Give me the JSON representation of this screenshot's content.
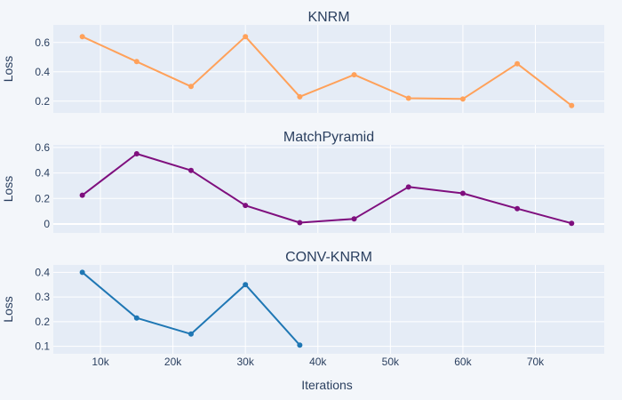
{
  "chart_data": [
    {
      "type": "line",
      "title": "KNRM",
      "ylabel": "Loss",
      "xlabel": "",
      "x": [
        7500,
        15000,
        22500,
        30000,
        37500,
        45000,
        52500,
        60000,
        67500,
        75000
      ],
      "values": [
        0.64,
        0.47,
        0.3,
        0.64,
        0.23,
        0.38,
        0.22,
        0.215,
        0.455,
        0.17
      ],
      "color": "#ffa15a",
      "xlim": [
        3500,
        79500
      ],
      "ylim": [
        0.12,
        0.72
      ],
      "yticks": [
        0.2,
        0.4,
        0.6
      ],
      "ytick_labels": [
        "0.2",
        "0.4",
        "0.6"
      ],
      "grid": true
    },
    {
      "type": "line",
      "title": "MatchPyramid",
      "ylabel": "Loss",
      "xlabel": "",
      "x": [
        7500,
        15000,
        22500,
        30000,
        37500,
        45000,
        52500,
        60000,
        67500,
        75000
      ],
      "values": [
        0.225,
        0.55,
        0.42,
        0.145,
        0.01,
        0.04,
        0.29,
        0.24,
        0.12,
        0.005
      ],
      "color": "#7f0f7e",
      "xlim": [
        3500,
        79500
      ],
      "ylim": [
        -0.07,
        0.62
      ],
      "yticks": [
        0,
        0.2,
        0.4,
        0.6
      ],
      "ytick_labels": [
        "0",
        "0.2",
        "0.4",
        "0.6"
      ],
      "grid": true
    },
    {
      "type": "line",
      "title": "CONV-KNRM",
      "ylabel": "Loss",
      "xlabel": "Iterations",
      "x": [
        7500,
        15000,
        22500,
        30000,
        37500
      ],
      "values": [
        0.4,
        0.215,
        0.15,
        0.35,
        0.105
      ],
      "color": "#1f77b4",
      "xlim": [
        3500,
        79500
      ],
      "ylim": [
        0.07,
        0.43
      ],
      "yticks": [
        0.1,
        0.2,
        0.3,
        0.4
      ],
      "ytick_labels": [
        "0.1",
        "0.2",
        "0.3",
        "0.4"
      ],
      "xticks": [
        10000,
        20000,
        30000,
        40000,
        50000,
        60000,
        70000
      ],
      "xtick_labels": [
        "10k",
        "20k",
        "30k",
        "40k",
        "50k",
        "60k",
        "70k"
      ],
      "grid": true
    }
  ]
}
